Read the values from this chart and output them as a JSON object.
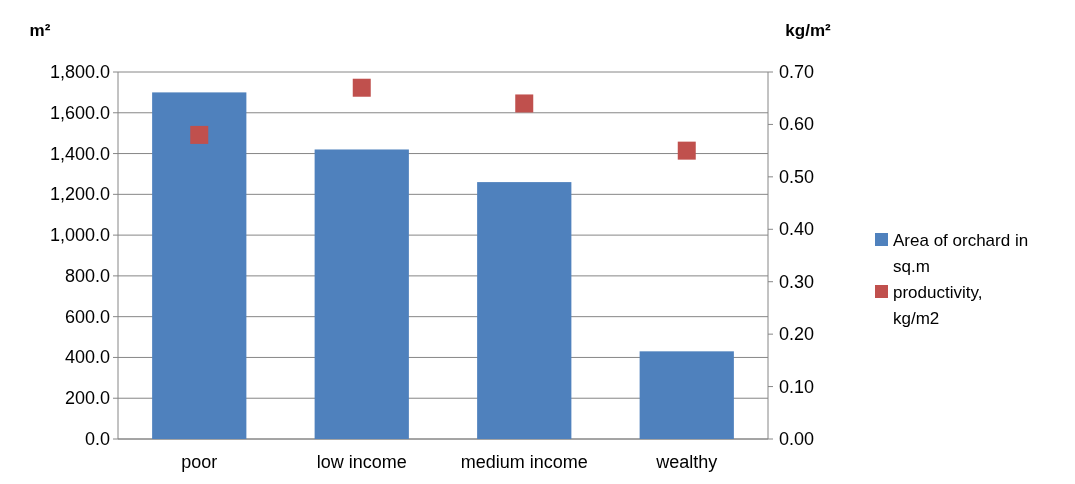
{
  "chart_data": {
    "type": "bar",
    "ylabel": "m²",
    "y2label": "kg/m²",
    "categories": [
      "poor",
      "low income",
      "medium income",
      "wealthy"
    ],
    "series": [
      {
        "name": "Area of orchard in sq.m",
        "color": "#4f81bd",
        "values": [
          1700,
          1420,
          1260,
          430
        ]
      },
      {
        "name": "productivity, kg/m2",
        "type": "scatter",
        "axis": "y2",
        "color": "#c0504d",
        "values": [
          0.58,
          0.67,
          0.64,
          0.55
        ]
      }
    ],
    "ylim": [
      0,
      1800
    ],
    "yticks": [
      {
        "value": 0,
        "label": "0.0"
      },
      {
        "value": 200,
        "label": "200.0"
      },
      {
        "value": 400,
        "label": "400.0"
      },
      {
        "value": 600,
        "label": "600.0"
      },
      {
        "value": 800,
        "label": "800.0"
      },
      {
        "value": 1000,
        "label": "1,000.0"
      },
      {
        "value": 1200,
        "label": "1,200.0"
      },
      {
        "value": 1400,
        "label": "1,400.0"
      },
      {
        "value": 1600,
        "label": "1,600.0"
      },
      {
        "value": 1800,
        "label": "1,800.0"
      }
    ],
    "y2lim": [
      0,
      0.7
    ],
    "y2ticks": [
      {
        "value": 0,
        "label": "0.00"
      },
      {
        "value": 0.1,
        "label": "0.10"
      },
      {
        "value": 0.2,
        "label": "0.20"
      },
      {
        "value": 0.3,
        "label": "0.30"
      },
      {
        "value": 0.4,
        "label": "0.40"
      },
      {
        "value": 0.5,
        "label": "0.50"
      },
      {
        "value": 0.6,
        "label": "0.60"
      },
      {
        "value": 0.7,
        "label": "0.70"
      }
    ],
    "grid": "y",
    "legend": "right",
    "marker": "square"
  }
}
